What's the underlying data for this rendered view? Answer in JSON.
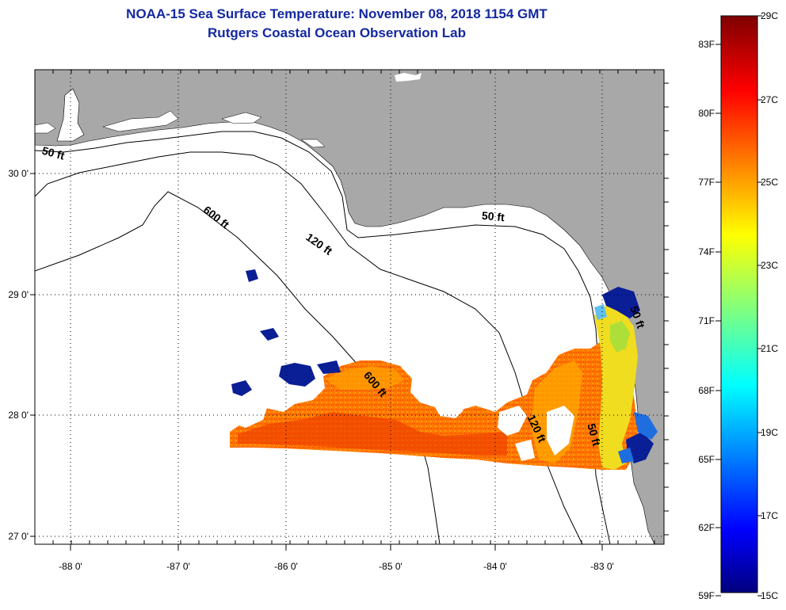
{
  "title_line1": "NOAA-15 Sea Surface Temperature:  November 08, 2018 1154 GMT",
  "title_line2": "Rutgers Coastal Ocean Observation Lab",
  "lon_labels": [
    "-88 0'",
    "-87 0'",
    "-86 0'",
    "-85 0'",
    "-84 0'",
    "-83 0'"
  ],
  "lat_labels": [
    "30 0'",
    "29 0'",
    "28 0'",
    "27 0'"
  ],
  "contour_labels": [
    "50 ft",
    "120 ft",
    "600 ft",
    "50 ft",
    "600 ft",
    "120 ft",
    "50 ft",
    "50 ft"
  ],
  "colorbar": {
    "f_labels": [
      "83F",
      "80F",
      "77F",
      "74F",
      "71F",
      "68F",
      "65F",
      "62F",
      "59F"
    ],
    "c_labels": [
      "29C",
      "27C",
      "25C",
      "23C",
      "21C",
      "19C",
      "17C",
      "15C"
    ]
  },
  "colors": {
    "land": "#a8a8a8",
    "ocean": "#ffffff",
    "title": "#1428a0",
    "sst_warm": "#ff6a00",
    "sst_hot": "#ee3500",
    "sst_mid": "#ffb000",
    "sst_cool": "#f0e020",
    "cold_blue": "#0a1e96"
  }
}
